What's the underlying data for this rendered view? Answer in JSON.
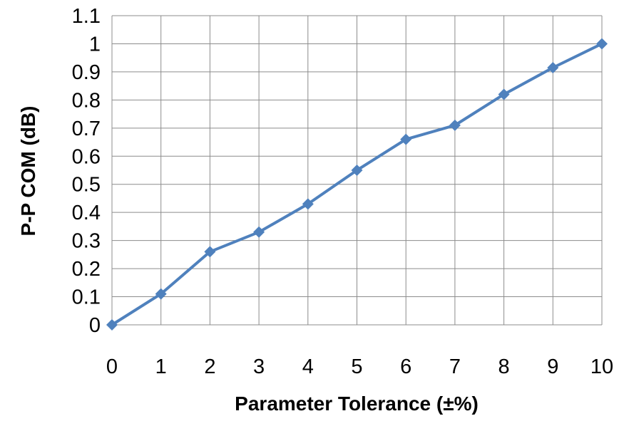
{
  "chart_data": {
    "type": "line",
    "title": "",
    "xlabel": "Parameter Tolerance (±%)",
    "ylabel": "P-P COM (dB)",
    "x": [
      0,
      1,
      2,
      3,
      4,
      5,
      6,
      7,
      8,
      9,
      10
    ],
    "xlim": [
      0,
      10
    ],
    "ylim": [
      0,
      1.1
    ],
    "x_ticks": [
      "0",
      "1",
      "2",
      "3",
      "4",
      "5",
      "6",
      "7",
      "8",
      "9",
      "10"
    ],
    "y_ticks": [
      "0",
      "0.1",
      "0.2",
      "0.3",
      "0.4",
      "0.5",
      "0.6",
      "0.7",
      "0.8",
      "0.9",
      "1",
      "1.1"
    ],
    "grid": true,
    "legend": "none",
    "series": [
      {
        "color": "#4F81BD",
        "marker": "diamond",
        "values": [
          0,
          0.11,
          0.26,
          0.33,
          0.43,
          0.55,
          0.66,
          0.71,
          0.82,
          0.915,
          1.0
        ]
      }
    ]
  }
}
